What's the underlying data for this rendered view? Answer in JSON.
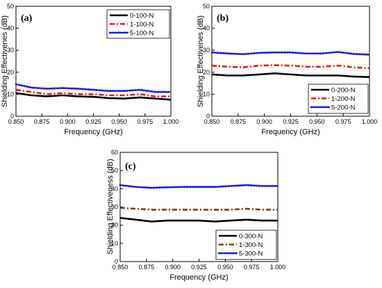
{
  "chart_data": [
    {
      "type": "line",
      "panel_label": "(a)",
      "xlabel": "Frequency (GHz)",
      "ylabel": "Shielding Effectivenes (dB)",
      "xlim": [
        0.85,
        1.0
      ],
      "ylim": [
        0,
        50
      ],
      "xticks": [
        "0.850",
        "0.875",
        "0.900",
        "0.925",
        "0.950",
        "0.975",
        "1.000"
      ],
      "yticks": [
        "0",
        "10",
        "20",
        "30",
        "40",
        "50"
      ],
      "legend_position": "top-right",
      "x": [
        0.85,
        0.865,
        0.88,
        0.895,
        0.91,
        0.925,
        0.94,
        0.955,
        0.97,
        0.985,
        1.0
      ],
      "series": [
        {
          "name": "0-100-N",
          "color": "#000000",
          "style": "solid",
          "values": [
            10.5,
            9.5,
            9.0,
            9.5,
            9.0,
            8.8,
            8.2,
            8.0,
            8.5,
            8.0,
            7.5
          ]
        },
        {
          "name": "1-100-N",
          "color": "#e8141c",
          "style": "dashdot",
          "values": [
            12.0,
            11.0,
            10.0,
            10.5,
            10.0,
            10.0,
            9.5,
            9.5,
            10.0,
            9.0,
            9.0
          ]
        },
        {
          "name": "5-100-N",
          "color": "#1f1fd6",
          "style": "dotted",
          "values": [
            14.5,
            13.0,
            12.5,
            12.8,
            12.5,
            12.0,
            11.5,
            11.5,
            12.0,
            11.0,
            11.0
          ]
        }
      ]
    },
    {
      "type": "line",
      "panel_label": "(b)",
      "xlabel": "Frequency (GHz)",
      "ylabel": "Shielding Effectivenes (dB)",
      "xlim": [
        0.85,
        1.0
      ],
      "ylim": [
        0,
        50
      ],
      "xticks": [
        "0.850",
        "0.875",
        "0.900",
        "0.925",
        "0.950",
        "0.975",
        "1.000"
      ],
      "yticks": [
        "0",
        "10",
        "20",
        "30",
        "40",
        "50"
      ],
      "legend_position": "bottom-right",
      "x": [
        0.85,
        0.865,
        0.88,
        0.895,
        0.91,
        0.925,
        0.94,
        0.955,
        0.97,
        0.985,
        1.0
      ],
      "series": [
        {
          "name": "0-200-N",
          "color": "#000000",
          "style": "solid",
          "values": [
            19.0,
            18.5,
            18.5,
            19.0,
            19.5,
            19.0,
            18.5,
            18.5,
            18.5,
            18.0,
            17.8
          ]
        },
        {
          "name": "1-200-N",
          "color": "#e8141c",
          "style": "dashdot",
          "values": [
            23.0,
            22.5,
            22.2,
            23.0,
            23.2,
            23.0,
            22.5,
            22.5,
            23.0,
            22.2,
            21.8
          ]
        },
        {
          "name": "5-200-N",
          "color": "#1f1fd6",
          "style": "dotted",
          "values": [
            29.0,
            28.5,
            28.2,
            28.8,
            29.0,
            29.0,
            28.5,
            28.5,
            29.2,
            28.3,
            28.0
          ]
        }
      ]
    },
    {
      "type": "line",
      "panel_label": "(c)",
      "xlabel": "Frequency (GHz)",
      "ylabel": "Shielding Effectiveness (dB)",
      "xlim": [
        0.85,
        1.0
      ],
      "ylim": [
        0,
        60
      ],
      "xticks": [
        "0.850",
        "0.875",
        "0.900",
        "0.925",
        "0.950",
        "0.975",
        "1.000"
      ],
      "yticks": [
        "0",
        "10",
        "20",
        "30",
        "40",
        "50",
        "60"
      ],
      "legend_position": "bottom-right",
      "x": [
        0.85,
        0.865,
        0.88,
        0.895,
        0.91,
        0.925,
        0.94,
        0.955,
        0.97,
        0.985,
        1.0
      ],
      "series": [
        {
          "name": "0-300-N",
          "color": "#000000",
          "style": "solid",
          "values": [
            24.0,
            23.0,
            22.0,
            22.5,
            22.5,
            22.5,
            22.0,
            22.5,
            23.0,
            22.5,
            22.5
          ]
        },
        {
          "name": "1-300-N",
          "color": "#7a3f12",
          "style": "dashdot",
          "values": [
            29.5,
            29.0,
            28.5,
            28.5,
            28.5,
            28.5,
            28.5,
            28.5,
            29.0,
            28.5,
            28.5
          ]
        },
        {
          "name": "5-300-N",
          "color": "#1f1fd6",
          "style": "dotted",
          "values": [
            42.0,
            41.0,
            40.5,
            40.8,
            41.0,
            41.0,
            41.0,
            41.5,
            42.0,
            41.5,
            41.5
          ]
        }
      ]
    }
  ]
}
